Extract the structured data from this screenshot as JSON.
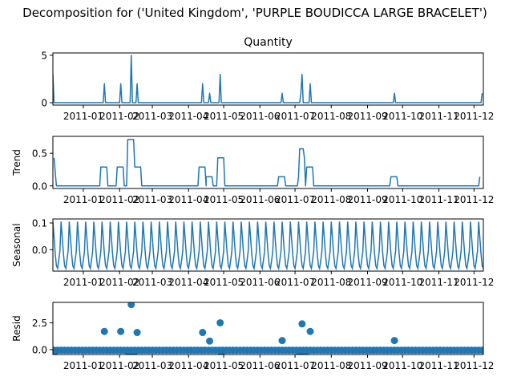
{
  "chart_data": {
    "type": "line",
    "title": "Decomposition for ('United Kingdom', 'PURPLE BOUDICCA LARGE BRACELET')",
    "color": "#1f77b4",
    "x_tick_labels": [
      "2011-01",
      "2011-02",
      "2011-03",
      "2011-04",
      "2011-05",
      "2011-06",
      "2011-07",
      "2011-08",
      "2011-09",
      "2011-10",
      "2011-11",
      "2011-12"
    ],
    "x_range": [
      "2010-12-06",
      "2011-12-09"
    ],
    "panels": [
      {
        "name": "observed",
        "title": "Quantity",
        "ylabel": "",
        "type": "line",
        "ylim": [
          -0.25,
          5.25
        ],
        "yticks": [
          0,
          5
        ],
        "ytick_labels": [
          "0",
          "5"
        ],
        "series_values": [
          [
            "2010-12-06",
            3
          ],
          [
            "2010-12-07",
            0
          ],
          [
            "2011-01-18",
            0
          ],
          [
            "2011-01-19",
            2
          ],
          [
            "2011-01-20",
            0
          ],
          [
            "2011-02-01",
            0
          ],
          [
            "2011-02-02",
            2
          ],
          [
            "2011-02-03",
            0
          ],
          [
            "2011-02-10",
            0
          ],
          [
            "2011-02-11",
            5
          ],
          [
            "2011-02-12",
            0
          ],
          [
            "2011-02-15",
            0
          ],
          [
            "2011-02-16",
            2
          ],
          [
            "2011-02-17",
            0
          ],
          [
            "2011-04-12",
            0
          ],
          [
            "2011-04-13",
            2
          ],
          [
            "2011-04-14",
            0
          ],
          [
            "2011-04-18",
            0
          ],
          [
            "2011-04-19",
            1
          ],
          [
            "2011-04-20",
            0
          ],
          [
            "2011-04-27",
            0
          ],
          [
            "2011-04-28",
            3
          ],
          [
            "2011-04-29",
            0
          ],
          [
            "2011-06-19",
            0
          ],
          [
            "2011-06-20",
            1
          ],
          [
            "2011-06-21",
            0
          ],
          [
            "2011-07-05",
            0
          ],
          [
            "2011-07-06",
            1
          ],
          [
            "2011-07-07",
            3
          ],
          [
            "2011-07-08",
            0
          ],
          [
            "2011-07-13",
            0
          ],
          [
            "2011-07-14",
            2
          ],
          [
            "2011-07-15",
            0
          ],
          [
            "2011-09-23",
            0
          ],
          [
            "2011-09-24",
            1
          ],
          [
            "2011-09-25",
            0
          ],
          [
            "2011-12-07",
            0
          ],
          [
            "2011-12-08",
            1
          ]
        ]
      },
      {
        "name": "trend",
        "title": "",
        "ylabel": "Trend",
        "type": "line",
        "ylim": [
          -0.04,
          0.76
        ],
        "yticks": [
          0.0,
          0.5
        ],
        "ytick_labels": [
          "0.0",
          "0.5"
        ],
        "series_values": [
          [
            "2010-12-07",
            0.43
          ],
          [
            "2010-12-09",
            0
          ],
          [
            "2011-01-15",
            0
          ],
          [
            "2011-01-16",
            0.29
          ],
          [
            "2011-01-21",
            0.29
          ],
          [
            "2011-01-22",
            0
          ],
          [
            "2011-01-29",
            0
          ],
          [
            "2011-01-30",
            0.29
          ],
          [
            "2011-02-04",
            0.29
          ],
          [
            "2011-02-05",
            0
          ],
          [
            "2011-02-07",
            0
          ],
          [
            "2011-02-08",
            0.71
          ],
          [
            "2011-02-13",
            0.71
          ],
          [
            "2011-02-14",
            0.29
          ],
          [
            "2011-02-19",
            0.29
          ],
          [
            "2011-02-20",
            0
          ],
          [
            "2011-04-09",
            0
          ],
          [
            "2011-04-10",
            0.29
          ],
          [
            "2011-04-15",
            0.29
          ],
          [
            "2011-04-16",
            0
          ],
          [
            "2011-04-16",
            0.14
          ],
          [
            "2011-04-21",
            0.14
          ],
          [
            "2011-04-22",
            0
          ],
          [
            "2011-04-25",
            0
          ],
          [
            "2011-04-26",
            0.43
          ],
          [
            "2011-05-01",
            0.43
          ],
          [
            "2011-05-02",
            0
          ],
          [
            "2011-06-16",
            0
          ],
          [
            "2011-06-17",
            0.14
          ],
          [
            "2011-06-22",
            0.14
          ],
          [
            "2011-06-23",
            0
          ],
          [
            "2011-07-03",
            0
          ],
          [
            "2011-07-04",
            0.14
          ],
          [
            "2011-07-05",
            0.57
          ],
          [
            "2011-07-08",
            0.57
          ],
          [
            "2011-07-09",
            0.43
          ],
          [
            "2011-07-10",
            0
          ],
          [
            "2011-07-11",
            0.29
          ],
          [
            "2011-07-16",
            0.29
          ],
          [
            "2011-07-17",
            0
          ],
          [
            "2011-09-20",
            0
          ],
          [
            "2011-09-21",
            0.14
          ],
          [
            "2011-09-26",
            0.14
          ],
          [
            "2011-09-27",
            0
          ],
          [
            "2011-12-05",
            0
          ],
          [
            "2011-12-06",
            0.14
          ]
        ]
      },
      {
        "name": "seasonal",
        "title": "",
        "ylabel": "Seasonal",
        "type": "line",
        "ylim": [
          -0.08,
          0.115
        ],
        "yticks": [
          0.0,
          0.1
        ],
        "ytick_labels": [
          "0.0",
          "0.1"
        ],
        "period_days": 7,
        "weekly_pattern": [
          0.105,
          0.045,
          -0.015,
          -0.06,
          -0.07,
          -0.04,
          -0.005
        ],
        "start": "2010-12-06"
      },
      {
        "name": "resid",
        "title": "",
        "ylabel": "Resid",
        "type": "scatter",
        "ylim": [
          -0.45,
          4.4
        ],
        "yticks": [
          0.0,
          2.5
        ],
        "ytick_labels": [
          "0.0",
          "2.5"
        ],
        "marker_every_days": 3,
        "baseline": -0.05,
        "points": [
          [
            "2010-12-07",
            -0.35
          ],
          [
            "2011-01-19",
            1.7
          ],
          [
            "2011-02-02",
            1.7
          ],
          [
            "2011-02-09",
            -0.35
          ],
          [
            "2011-02-10",
            -0.3
          ],
          [
            "2011-02-11",
            4.2
          ],
          [
            "2011-02-13",
            -0.3
          ],
          [
            "2011-02-16",
            1.6
          ],
          [
            "2011-04-13",
            1.6
          ],
          [
            "2011-04-19",
            0.8
          ],
          [
            "2011-04-28",
            2.5
          ],
          [
            "2011-04-29",
            -0.25
          ],
          [
            "2011-06-20",
            0.85
          ],
          [
            "2011-07-05",
            -0.3
          ],
          [
            "2011-07-06",
            -0.25
          ],
          [
            "2011-07-07",
            2.4
          ],
          [
            "2011-07-08",
            -0.3
          ],
          [
            "2011-07-10",
            -0.2
          ],
          [
            "2011-07-14",
            1.7
          ],
          [
            "2011-09-24",
            0.85
          ]
        ]
      }
    ]
  }
}
